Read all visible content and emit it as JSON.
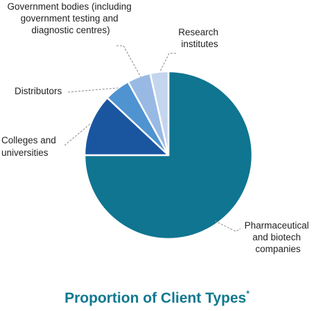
{
  "chart_data": {
    "type": "pie",
    "title": "Proportion of Client Types",
    "title_marker": "*",
    "slices": [
      {
        "label": "Pharmaceutical and biotech companies",
        "value": 75.0,
        "color": "#0f7590"
      },
      {
        "label": "Colleges and universities",
        "value": 12.0,
        "color": "#1a56a0"
      },
      {
        "label": "Distributors",
        "value": 5.0,
        "color": "#4f93d1"
      },
      {
        "label": "Government bodies (including government testing and diagnostic centres)",
        "value": 4.5,
        "color": "#98b9e3"
      },
      {
        "label": "Research institutes",
        "value": 3.5,
        "color": "#c4d5ee"
      }
    ]
  },
  "labels": {
    "pharma": [
      "Pharmaceutical",
      "and biotech",
      "companies"
    ],
    "colleges": [
      "Colleges and",
      "universities"
    ],
    "distributors": [
      "Distributors"
    ],
    "government": [
      "Government bodies (including",
      "government testing and",
      "diagnostic centres)"
    ],
    "research": [
      "Research",
      "institutes"
    ]
  }
}
